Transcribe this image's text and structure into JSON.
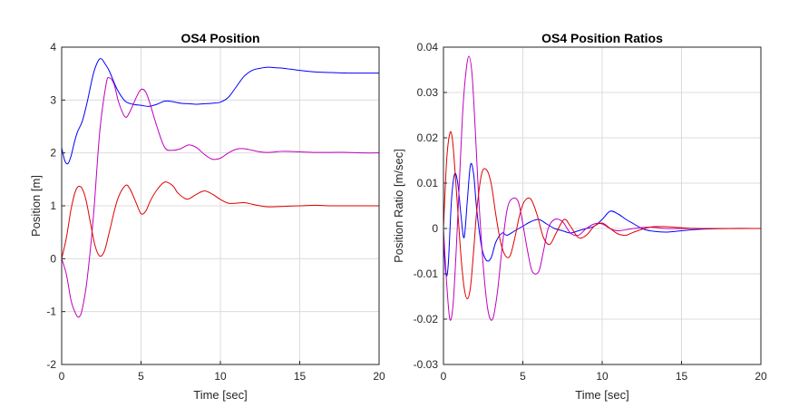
{
  "chart_data": [
    {
      "type": "line",
      "title": "OS4 Position",
      "xlabel": "Time   [sec]",
      "ylabel": "Position   [m]",
      "xlim": [
        0,
        20
      ],
      "ylim": [
        -2,
        4
      ],
      "xticks": [
        0,
        5,
        10,
        15,
        20
      ],
      "yticks": [
        -2,
        -1,
        0,
        1,
        2,
        3,
        4
      ],
      "xtick_labels": [
        "0",
        "5",
        "10",
        "15",
        "20"
      ],
      "ytick_labels": [
        "-2",
        "-1",
        "0",
        "1",
        "2",
        "3",
        "4"
      ],
      "grid": true,
      "series": [
        {
          "color": "#0000ff",
          "x": [
            0,
            0.2,
            0.4,
            0.6,
            0.8,
            1.0,
            1.3,
            1.6,
            2.0,
            2.3,
            2.5,
            2.7,
            3.0,
            3.5,
            4.0,
            4.5,
            5.0,
            5.5,
            6.0,
            6.5,
            7.0,
            7.5,
            8.0,
            8.5,
            9.0,
            9.5,
            10.0,
            10.5,
            11.0,
            11.5,
            12.0,
            12.5,
            13.0,
            13.5,
            14.0,
            15.0,
            16.0,
            17.0,
            18.0,
            19.0,
            20.0
          ],
          "y": [
            2.1,
            1.85,
            1.8,
            1.95,
            2.2,
            2.4,
            2.6,
            2.95,
            3.5,
            3.74,
            3.78,
            3.7,
            3.55,
            3.2,
            2.98,
            2.92,
            2.9,
            2.88,
            2.92,
            2.98,
            2.97,
            2.94,
            2.93,
            2.92,
            2.93,
            2.94,
            2.96,
            3.05,
            3.25,
            3.45,
            3.56,
            3.6,
            3.62,
            3.61,
            3.6,
            3.56,
            3.53,
            3.52,
            3.51,
            3.51,
            3.51
          ]
        },
        {
          "color": "#bf00bf",
          "x": [
            0,
            0.3,
            0.6,
            0.9,
            1.1,
            1.3,
            1.6,
            2.0,
            2.4,
            2.8,
            3.0,
            3.3,
            3.6,
            4.0,
            4.3,
            4.7,
            5.0,
            5.3,
            5.6,
            6.0,
            6.5,
            7.0,
            7.5,
            8.0,
            8.5,
            9.0,
            9.5,
            10.0,
            10.5,
            11.0,
            11.5,
            12.0,
            12.5,
            13.0,
            14.0,
            15.0,
            16.0,
            17.0,
            18.0,
            19.0,
            20.0
          ],
          "y": [
            0,
            -0.3,
            -0.8,
            -1.05,
            -1.1,
            -0.95,
            -0.4,
            0.8,
            2.4,
            3.3,
            3.42,
            3.3,
            2.95,
            2.68,
            2.78,
            3.05,
            3.2,
            3.15,
            2.9,
            2.5,
            2.1,
            2.05,
            2.08,
            2.15,
            2.1,
            1.97,
            1.88,
            1.9,
            2.0,
            2.07,
            2.08,
            2.05,
            2.02,
            2.01,
            2.03,
            2.02,
            2.01,
            2.01,
            2.01,
            2.0,
            2.0
          ]
        },
        {
          "color": "#e00000",
          "x": [
            0,
            0.3,
            0.6,
            0.9,
            1.2,
            1.5,
            1.8,
            2.1,
            2.4,
            2.7,
            3.0,
            3.5,
            4.0,
            4.3,
            4.7,
            5.0,
            5.3,
            5.6,
            6.0,
            6.5,
            7.0,
            7.3,
            7.7,
            8.0,
            8.5,
            9.0,
            9.5,
            10.0,
            10.5,
            11.0,
            11.5,
            12.0,
            12.5,
            13.0,
            14.0,
            15.0,
            16.0,
            17.0,
            18.0,
            19.0,
            20.0
          ],
          "y": [
            0,
            0.4,
            0.95,
            1.3,
            1.36,
            1.15,
            0.7,
            0.25,
            0.05,
            0.15,
            0.5,
            1.1,
            1.38,
            1.32,
            1.05,
            0.85,
            0.9,
            1.1,
            1.3,
            1.45,
            1.38,
            1.25,
            1.15,
            1.13,
            1.22,
            1.28,
            1.22,
            1.12,
            1.05,
            1.05,
            1.06,
            1.03,
            1.0,
            0.98,
            0.99,
            1.0,
            1.01,
            1.0,
            1.0,
            1.0,
            1.0
          ]
        }
      ]
    },
    {
      "type": "line",
      "title": "OS4 Position Ratios",
      "xlabel": "Time   [sec]",
      "ylabel": "Position Ratio   [m/sec]",
      "xlim": [
        0,
        20
      ],
      "ylim": [
        -0.03,
        0.04
      ],
      "xticks": [
        0,
        5,
        10,
        15,
        20
      ],
      "yticks": [
        -0.03,
        -0.02,
        -0.01,
        0,
        0.01,
        0.02,
        0.03,
        0.04
      ],
      "xtick_labels": [
        "0",
        "5",
        "10",
        "15",
        "20"
      ],
      "ytick_labels": [
        "-0.03",
        "-0.02",
        "-0.01",
        "0",
        "0.01",
        "0.02",
        "0.03",
        "0.04"
      ],
      "grid": true,
      "series": [
        {
          "color": "#0000ff",
          "x": [
            0,
            0.15,
            0.3,
            0.5,
            0.7,
            0.9,
            1.1,
            1.3,
            1.5,
            1.7,
            1.9,
            2.1,
            2.4,
            2.7,
            3.0,
            3.3,
            3.7,
            4.0,
            4.5,
            5.0,
            5.5,
            6.0,
            6.5,
            7.0,
            7.5,
            8.0,
            8.5,
            9.0,
            9.5,
            10.0,
            10.5,
            11.0,
            11.5,
            12.0,
            12.5,
            13.0,
            14.0,
            15.0,
            16.0,
            18.0,
            20.0
          ],
          "y": [
            -0.002,
            -0.01,
            -0.008,
            0.006,
            0.012,
            0.01,
            0.003,
            -0.002,
            0.006,
            0.014,
            0.012,
            0.004,
            -0.004,
            -0.007,
            -0.0065,
            -0.003,
            -0.001,
            -0.0015,
            -0.0005,
            0.0005,
            0.0015,
            0.002,
            0.001,
            0.0,
            -0.0005,
            -0.001,
            -0.0005,
            0.0,
            0.0005,
            0.002,
            0.0038,
            0.0032,
            0.002,
            0.001,
            0.0,
            -0.0005,
            -0.0008,
            -0.0005,
            -0.0002,
            0.0,
            0.0
          ]
        },
        {
          "color": "#bf00bf",
          "x": [
            0,
            0.2,
            0.4,
            0.6,
            0.8,
            1.0,
            1.2,
            1.4,
            1.6,
            1.8,
            2.0,
            2.2,
            2.5,
            2.8,
            3.1,
            3.4,
            3.7,
            4.0,
            4.3,
            4.7,
            5.0,
            5.3,
            5.6,
            6.0,
            6.3,
            6.6,
            7.0,
            7.5,
            8.0,
            8.5,
            9.0,
            9.5,
            10.0,
            10.5,
            11.0,
            12.0,
            13.0,
            14.0,
            15.0,
            17.0,
            20.0
          ],
          "y": [
            0,
            -0.012,
            -0.02,
            -0.017,
            -0.005,
            0.01,
            0.025,
            0.034,
            0.038,
            0.034,
            0.022,
            0.008,
            -0.008,
            -0.018,
            -0.02,
            -0.014,
            -0.004,
            0.004,
            0.0065,
            0.006,
            0.001,
            -0.005,
            -0.0095,
            -0.0095,
            -0.005,
            0.0,
            0.002,
            0.0015,
            -0.001,
            -0.0015,
            0.0,
            0.001,
            0.001,
            0.0,
            -0.0005,
            0.0,
            0.0003,
            0.0,
            0.0,
            0.0,
            0.0
          ]
        },
        {
          "color": "#e00000",
          "x": [
            0,
            0.2,
            0.4,
            0.55,
            0.7,
            0.9,
            1.1,
            1.3,
            1.5,
            1.7,
            1.9,
            2.1,
            2.4,
            2.7,
            3.0,
            3.3,
            3.6,
            3.9,
            4.2,
            4.5,
            4.8,
            5.1,
            5.5,
            5.9,
            6.3,
            6.7,
            7.1,
            7.6,
            8.0,
            8.5,
            9.0,
            9.5,
            10.0,
            10.5,
            11.0,
            11.5,
            12.0,
            13.0,
            14.0,
            16.0,
            20.0
          ],
          "y": [
            0,
            0.015,
            0.021,
            0.02,
            0.014,
            0.004,
            -0.006,
            -0.013,
            -0.0155,
            -0.013,
            -0.005,
            0.004,
            0.012,
            0.013,
            0.01,
            0.003,
            -0.003,
            -0.006,
            -0.006,
            -0.002,
            0.003,
            0.006,
            0.0065,
            0.003,
            -0.002,
            -0.0035,
            -0.001,
            0.002,
            0.0005,
            -0.002,
            -0.0015,
            0.0005,
            0.0012,
            0.0,
            -0.0012,
            -0.0015,
            -0.0008,
            0.0003,
            0.0004,
            0.0,
            0.0
          ]
        }
      ]
    }
  ]
}
